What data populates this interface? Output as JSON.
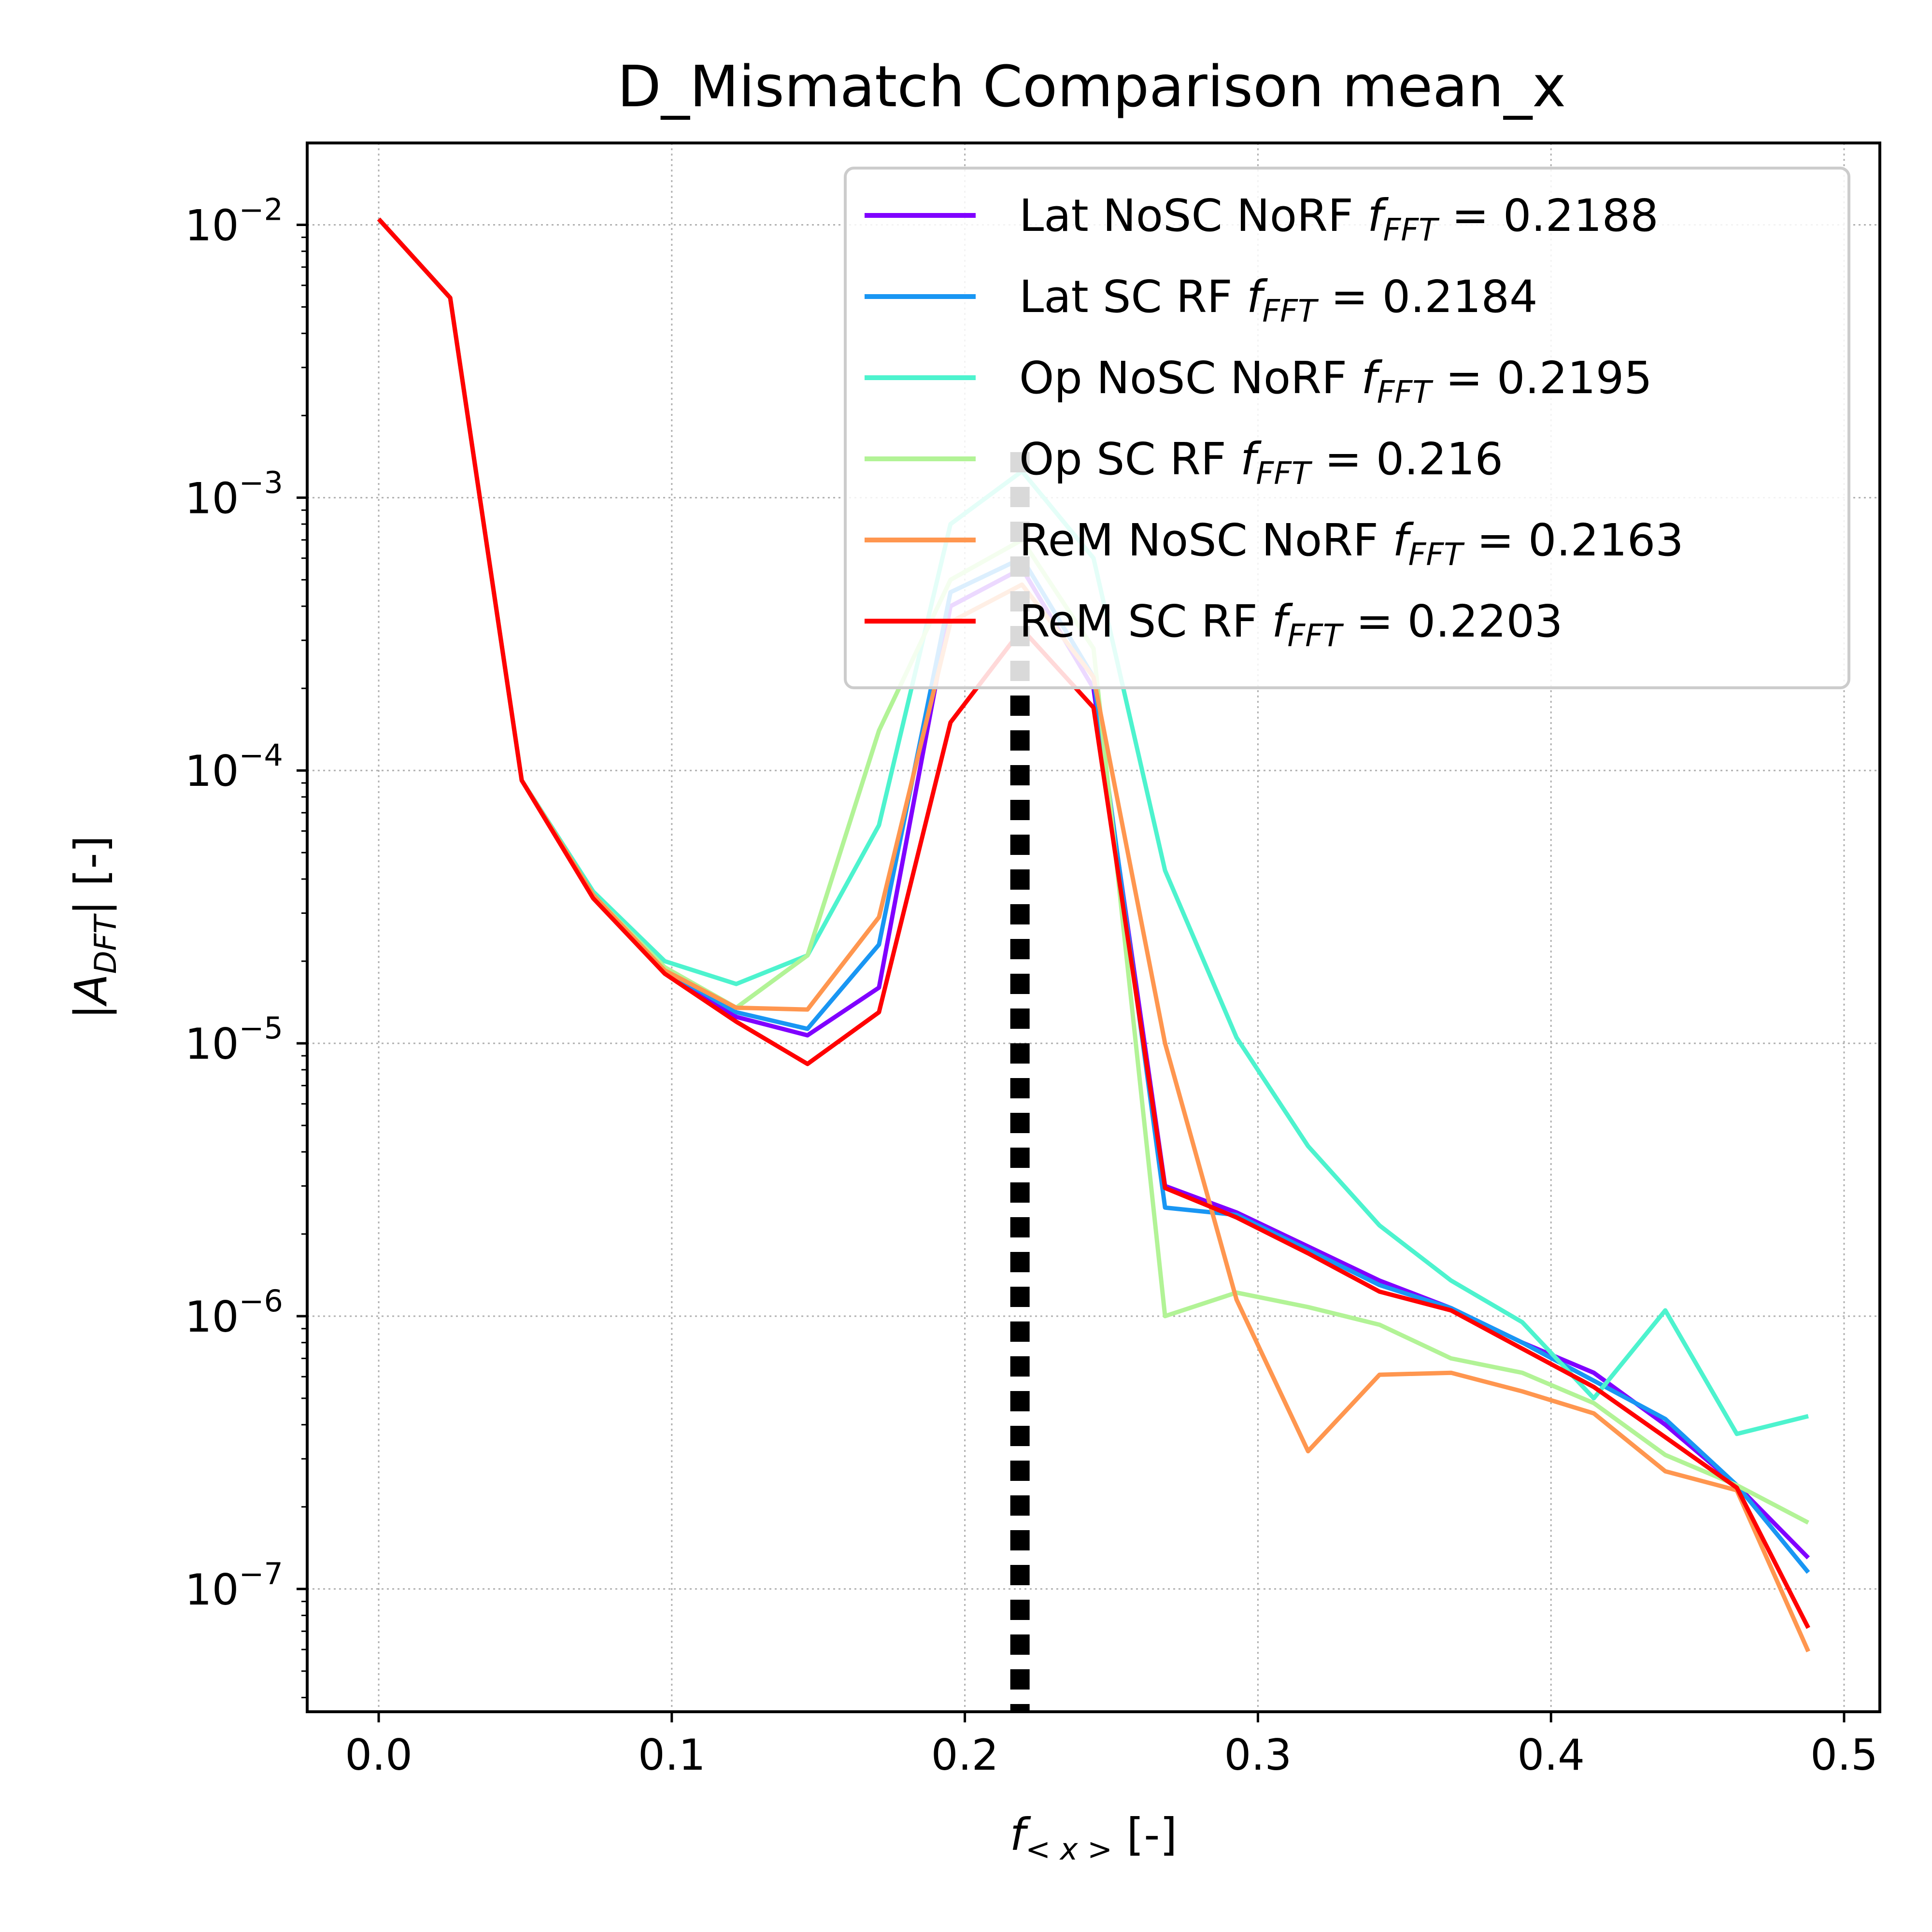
{
  "chart_data": {
    "type": "line",
    "title": "D_Mismatch Comparison mean_x",
    "xlabel": "f_<x> [-]",
    "ylabel": "|A_DFT| [-]",
    "xlim": [
      -0.0244,
      0.5122
    ],
    "ylim_log10": [
      -7.45,
      -1.7
    ],
    "y_scale": "log",
    "grid": true,
    "legend_placement": "upper right",
    "x_ticks": [
      0.0,
      0.1,
      0.2,
      0.3,
      0.4,
      0.5
    ],
    "x_tick_labels": [
      "0.0",
      "0.1",
      "0.2",
      "0.3",
      "0.4",
      "0.5"
    ],
    "y_ticks_exp": [
      -7,
      -6,
      -5,
      -4,
      -3,
      -2
    ],
    "x": [
      0.0,
      0.0244,
      0.0488,
      0.0732,
      0.0976,
      0.122,
      0.1463,
      0.1707,
      0.1951,
      0.2195,
      0.2439,
      0.2683,
      0.2927,
      0.3171,
      0.3415,
      0.3659,
      0.3902,
      0.4146,
      0.439,
      0.4634,
      0.4878
    ],
    "series": [
      {
        "name": "Lat NoSC NoRF",
        "freq": "0.2188",
        "color": "#8000ff",
        "values": [
          0.0105,
          0.0054,
          9.2e-05,
          3.5e-05,
          1.85e-05,
          1.25e-05,
          1.07e-05,
          1.6e-05,
          0.0004,
          0.00055,
          0.0002,
          3e-06,
          2.4e-06,
          1.8e-06,
          1.35e-06,
          1.07e-06,
          8e-07,
          6.2e-07,
          4e-07,
          2.4e-07,
          1.3e-07
        ]
      },
      {
        "name": "Lat SC RF",
        "freq": "0.2184",
        "color": "#1996f3",
        "values": [
          0.0105,
          0.0054,
          9.2e-05,
          3.5e-05,
          1.85e-05,
          1.3e-05,
          1.13e-05,
          2.3e-05,
          0.00045,
          0.0006,
          0.00022,
          2.5e-06,
          2.35e-06,
          1.75e-06,
          1.3e-06,
          1.07e-06,
          8e-07,
          5.8e-07,
          4.2e-07,
          2.4e-07,
          1.15e-07
        ]
      },
      {
        "name": "Op NoSC NoRF",
        "freq": "0.2195",
        "color": "#4df3ce",
        "values": [
          0.0105,
          0.0054,
          9.2e-05,
          3.6e-05,
          2e-05,
          1.65e-05,
          2.1e-05,
          6.3e-05,
          0.0008,
          0.00125,
          0.0006,
          4.3e-05,
          1.05e-05,
          4.2e-06,
          2.15e-06,
          1.35e-06,
          9.5e-07,
          5e-07,
          1.05e-06,
          3.7e-07,
          4.3e-07
        ]
      },
      {
        "name": "Op SC RF",
        "freq": "0.216",
        "color": "#b2f396",
        "values": [
          0.0105,
          0.0054,
          9.2e-05,
          3.5e-05,
          1.9e-05,
          1.35e-05,
          2.1e-05,
          0.00014,
          0.0005,
          0.0007,
          0.00028,
          1e-06,
          1.22e-06,
          1.08e-06,
          9.3e-07,
          7e-07,
          6.2e-07,
          4.8e-07,
          3.1e-07,
          2.4e-07,
          1.75e-07
        ]
      },
      {
        "name": "ReM NoSC NoRF",
        "freq": "0.2163",
        "color": "#ff964f",
        "values": [
          0.0105,
          0.0054,
          9.2e-05,
          3.5e-05,
          1.85e-05,
          1.35e-05,
          1.33e-05,
          2.9e-05,
          0.00035,
          0.00048,
          0.00022,
          1e-05,
          1.15e-06,
          3.2e-07,
          6.1e-07,
          6.2e-07,
          5.3e-07,
          4.4e-07,
          2.7e-07,
          2.3e-07,
          5.9e-08
        ]
      },
      {
        "name": "ReM SC RF",
        "freq": "0.2203",
        "color": "#ff0000",
        "values": [
          0.0105,
          0.0054,
          9.2e-05,
          3.4e-05,
          1.8e-05,
          1.2e-05,
          8.4e-06,
          1.3e-05,
          0.00015,
          0.00033,
          0.00017,
          2.95e-06,
          2.3e-06,
          1.7e-06,
          1.23e-06,
          1.05e-06,
          7.6e-07,
          5.5e-07,
          3.6e-07,
          2.35e-07,
          7.2e-08
        ]
      }
    ],
    "vline": {
      "x": 0.2188,
      "style": "dotted",
      "color": "#000000"
    }
  }
}
